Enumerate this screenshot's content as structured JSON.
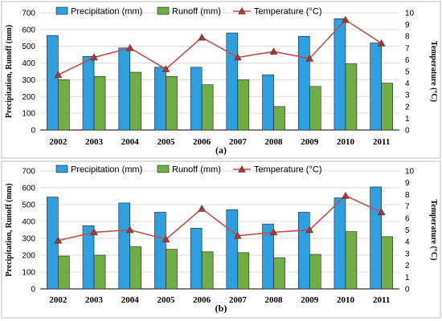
{
  "chart_data": [
    {
      "type": "bar",
      "panel_label": "(a)",
      "categories": [
        "2002",
        "2003",
        "2004",
        "2005",
        "2006",
        "2007",
        "2008",
        "2009",
        "2010",
        "2011"
      ],
      "ylabel": "Precipitation, Runoff (mm)",
      "y2label": "Temperature (°C)",
      "ylim": [
        0,
        700
      ],
      "y2lim": [
        0,
        10
      ],
      "yticks": [
        0,
        100,
        200,
        300,
        400,
        500,
        600,
        700
      ],
      "y2ticks": [
        0,
        1,
        2,
        3,
        4,
        5,
        6,
        7,
        8,
        9,
        10
      ],
      "grid": true,
      "legend_position": "top",
      "series": [
        {
          "name": "Precipitation (mm)",
          "kind": "bar",
          "axis": "left",
          "color": "#2f9fe0",
          "values": [
            565,
            440,
            490,
            375,
            375,
            580,
            330,
            560,
            665,
            520
          ]
        },
        {
          "name": "Runoff (mm)",
          "kind": "bar",
          "axis": "left",
          "color": "#70ad47",
          "values": [
            300,
            320,
            345,
            320,
            270,
            300,
            140,
            260,
            395,
            280
          ]
        },
        {
          "name": "Temperature (°C)",
          "kind": "line",
          "axis": "right",
          "color": "#c0504d",
          "values": [
            4.7,
            6.2,
            7.0,
            5.2,
            7.9,
            6.2,
            6.7,
            6.1,
            9.4,
            7.4
          ]
        }
      ]
    },
    {
      "type": "bar",
      "panel_label": "(b)",
      "categories": [
        "2002",
        "2003",
        "2004",
        "2005",
        "2006",
        "2007",
        "2008",
        "2009",
        "2010",
        "2011"
      ],
      "ylabel": "Precipitation, Runoff (mm)",
      "y2label": "Temperature (°C)",
      "ylim": [
        0,
        700
      ],
      "y2lim": [
        0,
        10
      ],
      "yticks": [
        0,
        100,
        200,
        300,
        400,
        500,
        600,
        700
      ],
      "y2ticks": [
        0,
        1,
        2,
        3,
        4,
        5,
        6,
        7,
        8,
        9,
        10
      ],
      "grid": true,
      "legend_position": "top",
      "series": [
        {
          "name": "Precipitation (mm)",
          "kind": "bar",
          "axis": "left",
          "color": "#2f9fe0",
          "values": [
            545,
            375,
            510,
            455,
            360,
            470,
            385,
            455,
            540,
            605
          ]
        },
        {
          "name": "Runoff (mm)",
          "kind": "bar",
          "axis": "left",
          "color": "#70ad47",
          "values": [
            195,
            200,
            250,
            235,
            220,
            215,
            185,
            205,
            340,
            310
          ]
        },
        {
          "name": "Temperature (°C)",
          "kind": "line",
          "axis": "right",
          "color": "#c0504d",
          "values": [
            4.1,
            4.8,
            5.0,
            4.2,
            6.8,
            4.5,
            4.8,
            5.0,
            7.9,
            6.5
          ]
        }
      ]
    }
  ]
}
